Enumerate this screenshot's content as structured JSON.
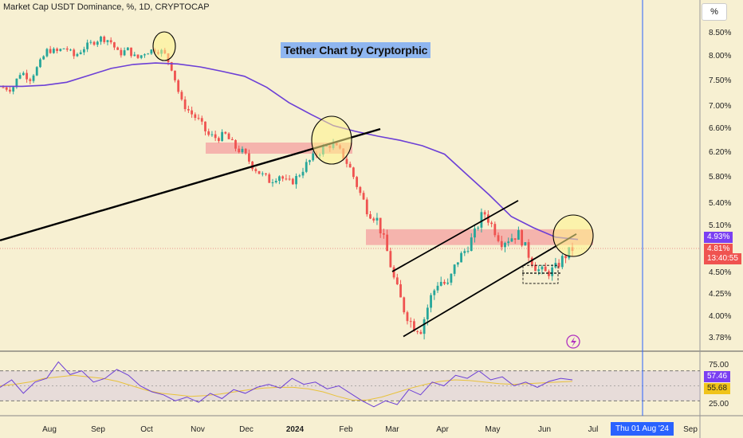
{
  "header": {
    "symbol_line": "Market Cap USDT Dominance, %, 1D, CRYPTOCAP"
  },
  "annotation": {
    "title": "Tether Chart by Cryptorphic"
  },
  "unit_button": "%",
  "colors": {
    "background": "#f7f0d2",
    "up": "#26a69a",
    "down": "#ef5350",
    "ma": "#6c3fd6",
    "zone": "#f4a0a0",
    "rsi": "#6c3fd6",
    "rsi_ma": "#e8c23a",
    "crosshair": "#2962ff"
  },
  "chart_data": [
    {
      "type": "candlestick",
      "title": "Market Cap USDT Dominance, %, 1D, CRYPTOCAP",
      "y_ticks": [
        "8.50%",
        "8.00%",
        "7.50%",
        "7.00%",
        "6.60%",
        "6.20%",
        "5.80%",
        "5.40%",
        "5.10%",
        "4.50%",
        "4.25%",
        "4.00%",
        "3.78%"
      ],
      "x_ticks": [
        "Aug",
        "Sep",
        "Oct",
        "Nov",
        "Dec",
        "2024",
        "Feb",
        "Mar",
        "Apr",
        "May",
        "Jun",
        "Jul",
        "Sep"
      ],
      "price_tags": [
        {
          "label": "4.93%",
          "role": "moving-average"
        },
        {
          "label": "4.81%",
          "role": "last-price"
        },
        {
          "label": "13:40:55",
          "role": "countdown"
        }
      ],
      "close_path": [
        7.38,
        7.35,
        7.7,
        7.55,
        7.82,
        8.15,
        8.1,
        8.2,
        8.0,
        8.18,
        8.3,
        8.4,
        8.35,
        8.05,
        8.15,
        7.95,
        8.1,
        8.15,
        8.1,
        7.75,
        7.1,
        6.9,
        6.75,
        6.5,
        6.45,
        6.5,
        6.3,
        6.2,
        6.0,
        5.85,
        5.75,
        5.85,
        5.7,
        5.8,
        6.0,
        6.15,
        6.28,
        6.35,
        6.2,
        5.95,
        5.6,
        5.3,
        5.2,
        4.85,
        4.4,
        4.1,
        3.92,
        3.88,
        4.2,
        4.42,
        4.35,
        4.65,
        4.8,
        5.0,
        5.3,
        5.1,
        4.9,
        4.95,
        5.0,
        4.75,
        4.55,
        4.5,
        4.55,
        4.7,
        4.81
      ],
      "moving_average_path": [
        7.4,
        7.4,
        7.42,
        7.48,
        7.62,
        7.76,
        7.84,
        7.87,
        7.85,
        7.79,
        7.7,
        7.6,
        7.38,
        7.08,
        6.86,
        6.66,
        6.56,
        6.48,
        6.41,
        6.32,
        6.18,
        5.85,
        5.54,
        5.23,
        5.08,
        4.96,
        4.93
      ],
      "zones": [
        {
          "from": "Oct",
          "to": "Feb",
          "low": 6.24,
          "high": 6.32
        },
        {
          "from": "Feb",
          "to": "Jul",
          "low": 4.9,
          "high": 5.02
        }
      ],
      "trendlines": [
        {
          "name": "long-support",
          "from": [
            "Jun",
            5.0
          ],
          "to": [
            "Feb",
            6.6
          ]
        },
        {
          "name": "channel-upper",
          "from": [
            "Mar",
            4.52
          ],
          "to": [
            "May",
            5.45
          ]
        },
        {
          "name": "channel-lower",
          "from": [
            "Mar",
            3.82
          ],
          "to": [
            "Jun",
            5.0
          ]
        }
      ],
      "highlight_circles": [
        {
          "date": "Oct",
          "value": 8.15
        },
        {
          "date": "Jan",
          "value": 6.35
        },
        {
          "date": "Jun",
          "value": 4.95
        }
      ]
    },
    {
      "type": "line",
      "name": "RSI",
      "y_ticks": [
        "75.00",
        "25.00"
      ],
      "value_tags": [
        {
          "label": "57.46",
          "role": "rsi"
        },
        {
          "label": "55.68",
          "role": "rsi-ma"
        }
      ],
      "band": [
        30,
        70
      ],
      "rsi_path": [
        48,
        58,
        40,
        55,
        60,
        82,
        65,
        70,
        55,
        60,
        72,
        64,
        50,
        42,
        38,
        30,
        35,
        28,
        40,
        33,
        45,
        40,
        48,
        52,
        47,
        60,
        52,
        55,
        46,
        50,
        40,
        30,
        22,
        30,
        25,
        45,
        38,
        55,
        50,
        64,
        60,
        70,
        58,
        62,
        50,
        55,
        48,
        56,
        60,
        58
      ],
      "rsi_ma_path": [
        50,
        52,
        55,
        60,
        62,
        64,
        62,
        60,
        56,
        50,
        44,
        40,
        38,
        36,
        37,
        39,
        42,
        45,
        47,
        48,
        48,
        46,
        42,
        36,
        31,
        31,
        35,
        41,
        47,
        52,
        56,
        58,
        57,
        55,
        53,
        52,
        53,
        54,
        55,
        56
      ]
    }
  ],
  "crosshair": {
    "date_label": "Thu 01 Aug '24"
  }
}
